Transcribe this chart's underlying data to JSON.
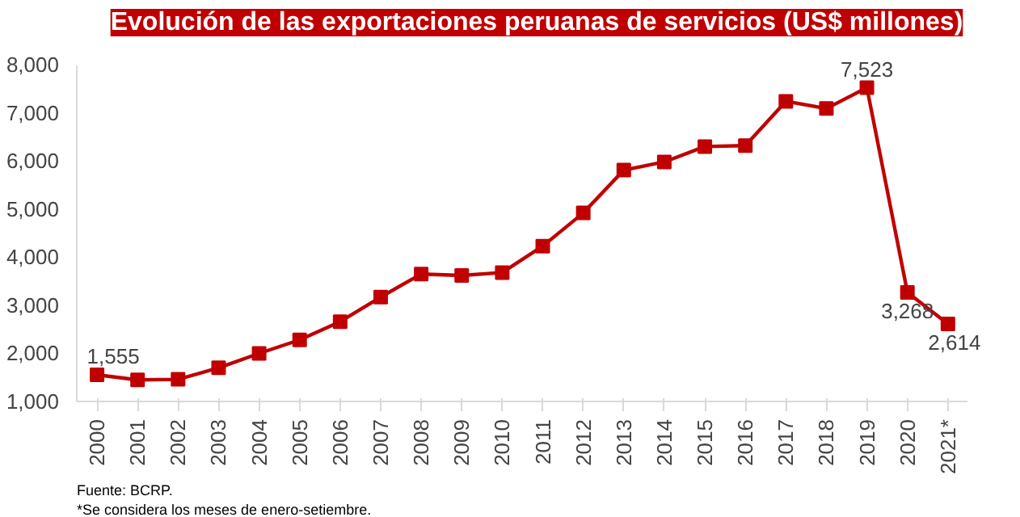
{
  "chart_data": {
    "type": "line",
    "title": "Evolución de las exportaciones peruanas de servicios (US$ millones)",
    "categories": [
      "2000",
      "2001",
      "2002",
      "2003",
      "2004",
      "2005",
      "2006",
      "2007",
      "2008",
      "2009",
      "2010",
      "2011",
      "2012",
      "2013",
      "2014",
      "2015",
      "2016",
      "2017",
      "2018",
      "2019",
      "2020",
      "2021*"
    ],
    "series": [
      {
        "color": "#c00000",
        "values": [
          1555,
          1450,
          1460,
          1700,
          2000,
          2280,
          2660,
          3170,
          3650,
          3620,
          3680,
          4230,
          4920,
          5810,
          5980,
          6300,
          6320,
          7240,
          7090,
          7523,
          3268,
          2614
        ],
        "value_labels": [
          "1,555",
          null,
          null,
          null,
          null,
          null,
          null,
          null,
          null,
          null,
          null,
          null,
          null,
          null,
          null,
          null,
          null,
          null,
          null,
          "7,523",
          "3,268",
          "2,614"
        ]
      }
    ],
    "ylim": [
      1000,
      8000
    ],
    "yticks": [
      {
        "value": 1000,
        "label": "1,000"
      },
      {
        "value": 2000,
        "label": "2,000"
      },
      {
        "value": 3000,
        "label": "3,000"
      },
      {
        "value": 4000,
        "label": "4,000"
      },
      {
        "value": 5000,
        "label": "5,000"
      },
      {
        "value": 6000,
        "label": "6,000"
      },
      {
        "value": 7000,
        "label": "7,000"
      },
      {
        "value": 8000,
        "label": "8,000"
      }
    ],
    "marker": "square",
    "grid": false,
    "annotations": [
      "*Se considera los meses de enero-setiembre.",
      "Fuente: BCRP."
    ]
  }
}
